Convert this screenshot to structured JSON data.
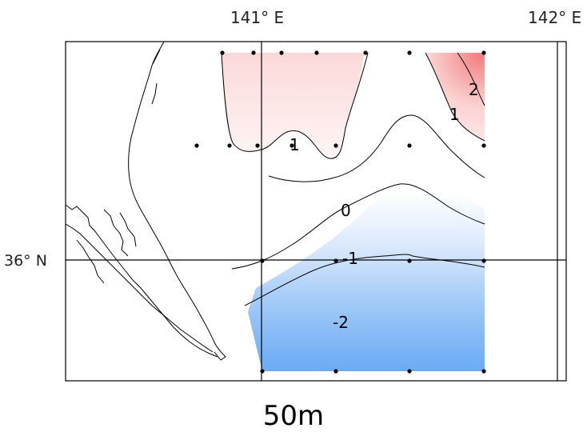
{
  "labels": {
    "lon_141": "141° E",
    "lon_142": "142° E",
    "lat_36": "36° N",
    "depth": "50m"
  },
  "contour_labels": {
    "plus2": "2",
    "plus1_right": "1",
    "plus1_center": "1",
    "zero": "0",
    "minus1": "-1",
    "minus2": "-2"
  },
  "colors": {
    "warm": "#f48c8c",
    "cold": "#6aaaf5",
    "line": "#000000",
    "station": "#000000"
  }
}
